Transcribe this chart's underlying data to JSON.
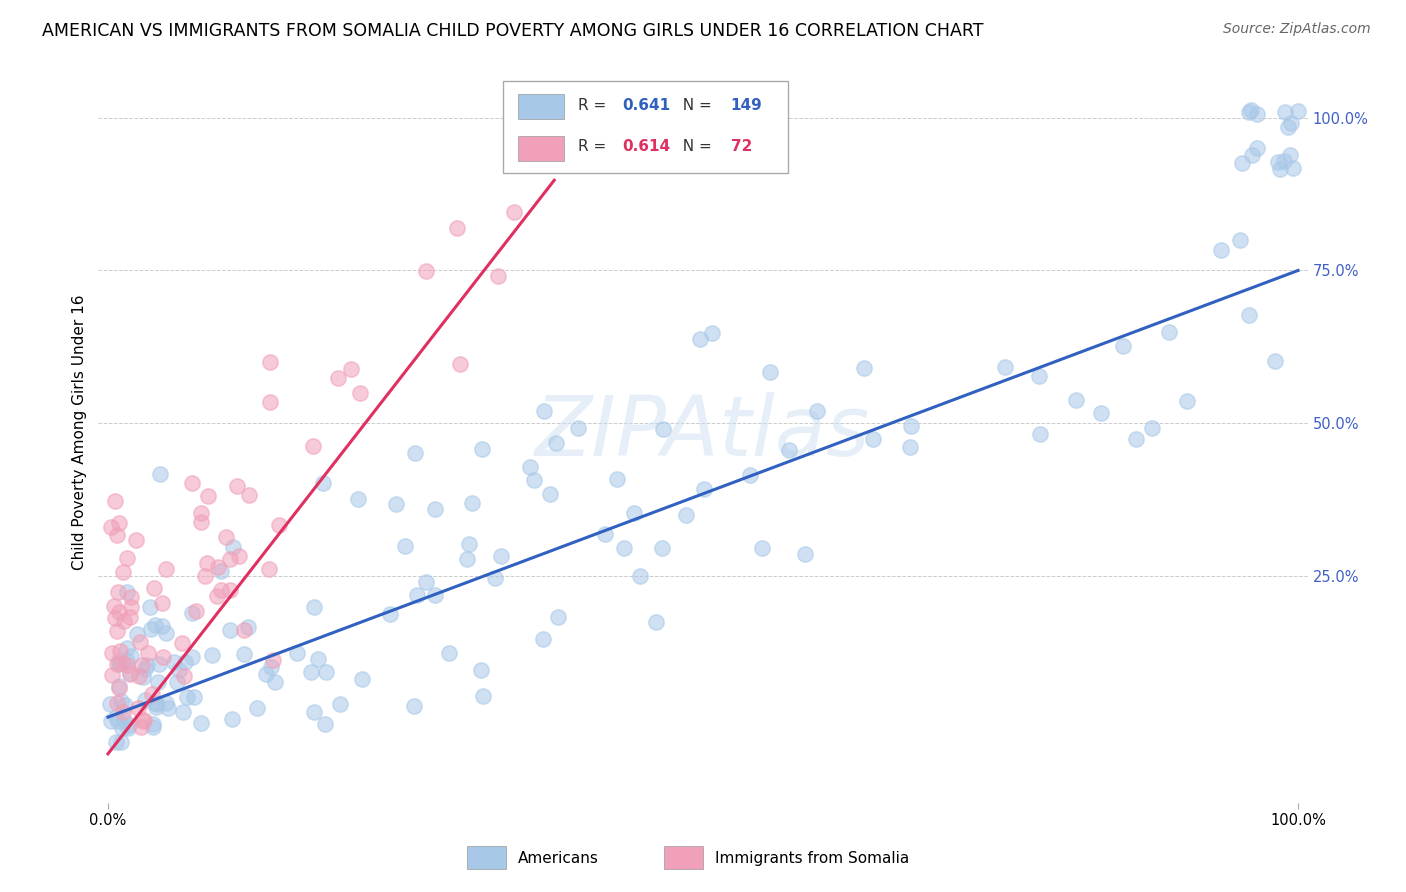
{
  "title": "AMERICAN VS IMMIGRANTS FROM SOMALIA CHILD POVERTY AMONG GIRLS UNDER 16 CORRELATION CHART",
  "source": "Source: ZipAtlas.com",
  "ylabel": "Child Poverty Among Girls Under 16",
  "R_american": 0.641,
  "N_american": 149,
  "R_somalia": 0.614,
  "N_somalia": 72,
  "color_american": "#a8c8e8",
  "color_somalia": "#f0a0b8",
  "trendline_american": "#3060c0",
  "trendline_somalia": "#e03060",
  "watermark_color": "#c8ddf0",
  "watermark_alpha": 0.45,
  "grid_color": "#cccccc",
  "background_color": "#ffffff",
  "title_fontsize": 12.5,
  "axis_label_fontsize": 11,
  "tick_fontsize": 10.5,
  "source_fontsize": 10,
  "right_tick_color": "#4060c8",
  "scatter_size": 120,
  "scatter_alpha": 0.55,
  "scatter_linewidth": 1.2
}
